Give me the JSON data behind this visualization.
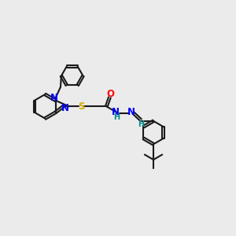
{
  "background_color": "#ebebeb",
  "bond_color": "#1a1a1a",
  "N_color": "#0000ff",
  "S_color": "#ccaa00",
  "O_color": "#ff0000",
  "H_color": "#008b8b",
  "figsize": [
    3.0,
    3.0
  ],
  "dpi": 100,
  "xlim": [
    0,
    10
  ],
  "ylim": [
    0,
    10
  ]
}
